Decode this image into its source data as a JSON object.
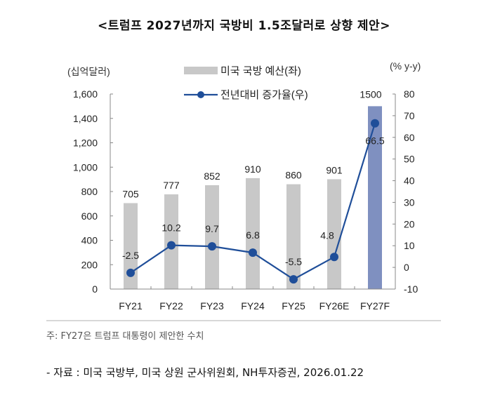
{
  "title": "<트럼프 2027년까지 국방비 1.5조달러로 상향 제안>",
  "chart_data": {
    "type": "bar+line",
    "categories": [
      "FY21",
      "FY22",
      "FY23",
      "FY24",
      "FY25",
      "FY26E",
      "FY27F"
    ],
    "series": [
      {
        "name": "미국 국방 예산(좌)",
        "type": "bar",
        "axis": "left",
        "values": [
          705,
          777,
          852,
          910,
          860,
          901,
          1500
        ],
        "labels": [
          "705",
          "777",
          "852",
          "910",
          "860",
          "901",
          "1500"
        ],
        "color": "#c8c8c8",
        "highlight_color": "#7f90c0"
      },
      {
        "name": "전년대비 증가율(우)",
        "type": "line",
        "axis": "right",
        "values": [
          -2.5,
          10.2,
          9.7,
          6.8,
          -5.5,
          4.8,
          66.5
        ],
        "labels": [
          "-2.5",
          "10.2",
          "9.7",
          "6.8",
          "-5.5",
          "4.8",
          "66.5"
        ],
        "color": "#1f4e99"
      }
    ],
    "left_axis": {
      "label": "(십억달러)",
      "ylim": [
        0,
        1600
      ],
      "ticks": [
        "0",
        "200",
        "400",
        "600",
        "800",
        "1,000",
        "1,200",
        "1,400",
        "1,600"
      ]
    },
    "right_axis": {
      "label": "(% y-y)",
      "ylim": [
        -10,
        80
      ],
      "ticks": [
        "-10",
        "0",
        "10",
        "20",
        "30",
        "40",
        "50",
        "60",
        "70",
        "80"
      ]
    },
    "legend": "top-center",
    "grid": false
  },
  "note": "주: FY27은 트럼프 대통령이 제안한 수치",
  "source": "- 자료 : 미국 국방부, 미국 상원 군사위원회, NH투자증권, 2026.01.22"
}
